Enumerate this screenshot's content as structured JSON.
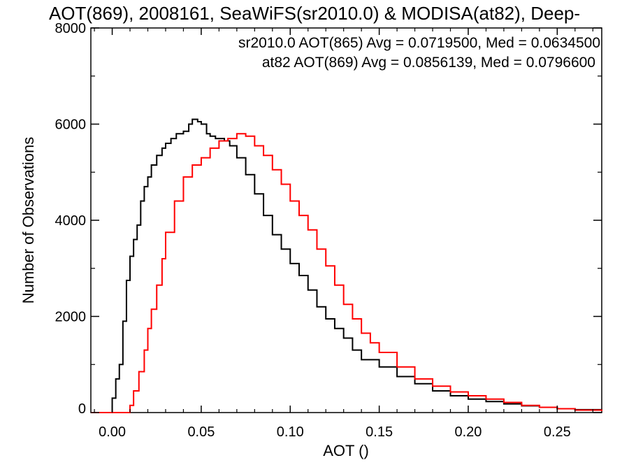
{
  "chart_data": {
    "type": "line",
    "title": "AOT(869), 2008161, SeaWiFS(sr2010.0) & MODISA(at82), Deep-",
    "xlabel": "AOT ()",
    "ylabel": "Number of Observations",
    "xlim": [
      -0.012,
      0.275
    ],
    "ylim": [
      0,
      8000
    ],
    "x_ticks": [
      0.0,
      0.05,
      0.1,
      0.15,
      0.2,
      0.25
    ],
    "x_tick_labels": [
      "0.00",
      "0.05",
      "0.10",
      "0.15",
      "0.20",
      "0.25"
    ],
    "y_ticks": [
      0,
      2000,
      4000,
      6000,
      8000
    ],
    "y_tick_labels": [
      "0",
      "2000",
      "4000",
      "6000",
      "8000"
    ],
    "grid": false,
    "legend": "top-right",
    "series": [
      {
        "name": "sr2010.0 AOT(865) Avg = 0.0719500, Med = 0.0634500",
        "color": "#000000",
        "x": [
          -0.012,
          -0.001,
          0.0,
          0.002,
          0.004,
          0.006,
          0.008,
          0.01,
          0.012,
          0.014,
          0.016,
          0.018,
          0.02,
          0.022,
          0.025,
          0.028,
          0.03,
          0.033,
          0.036,
          0.04,
          0.043,
          0.045,
          0.048,
          0.05,
          0.053,
          0.055,
          0.058,
          0.06,
          0.063,
          0.066,
          0.07,
          0.075,
          0.08,
          0.085,
          0.09,
          0.095,
          0.1,
          0.105,
          0.11,
          0.115,
          0.12,
          0.125,
          0.13,
          0.135,
          0.14,
          0.15,
          0.16,
          0.17,
          0.18,
          0.19,
          0.2,
          0.21,
          0.22,
          0.23,
          0.24,
          0.25,
          0.26,
          0.275
        ],
        "values": [
          0,
          0,
          300,
          700,
          1000,
          1900,
          2750,
          3250,
          3600,
          3900,
          4400,
          4700,
          4900,
          5150,
          5350,
          5500,
          5600,
          5700,
          5800,
          5850,
          6000,
          6100,
          6050,
          6000,
          5800,
          5750,
          5700,
          5700,
          5650,
          5550,
          5300,
          4950,
          4550,
          4100,
          3700,
          3400,
          3100,
          2850,
          2550,
          2200,
          1950,
          1750,
          1550,
          1300,
          1100,
          950,
          750,
          600,
          450,
          350,
          280,
          230,
          180,
          140,
          110,
          80,
          60,
          30
        ]
      },
      {
        "name": "at82 AOT(869) Avg = 0.0856139, Med = 0.0796600",
        "color": "#ff0000",
        "x": [
          -0.012,
          0.006,
          0.01,
          0.012,
          0.015,
          0.018,
          0.02,
          0.022,
          0.025,
          0.028,
          0.03,
          0.035,
          0.04,
          0.045,
          0.05,
          0.055,
          0.06,
          0.065,
          0.07,
          0.075,
          0.08,
          0.085,
          0.09,
          0.095,
          0.1,
          0.105,
          0.11,
          0.115,
          0.12,
          0.125,
          0.13,
          0.135,
          0.14,
          0.145,
          0.15,
          0.16,
          0.17,
          0.18,
          0.19,
          0.2,
          0.21,
          0.22,
          0.23,
          0.24,
          0.25,
          0.26,
          0.275
        ],
        "values": [
          0,
          0,
          150,
          450,
          850,
          1300,
          1750,
          2150,
          2650,
          3200,
          3750,
          4400,
          4900,
          5150,
          5300,
          5500,
          5650,
          5700,
          5800,
          5750,
          5550,
          5350,
          5050,
          4750,
          4400,
          4100,
          3800,
          3400,
          3050,
          2650,
          2250,
          1950,
          1650,
          1450,
          1250,
          950,
          700,
          550,
          430,
          350,
          280,
          210,
          150,
          110,
          80,
          50,
          30
        ]
      }
    ]
  }
}
